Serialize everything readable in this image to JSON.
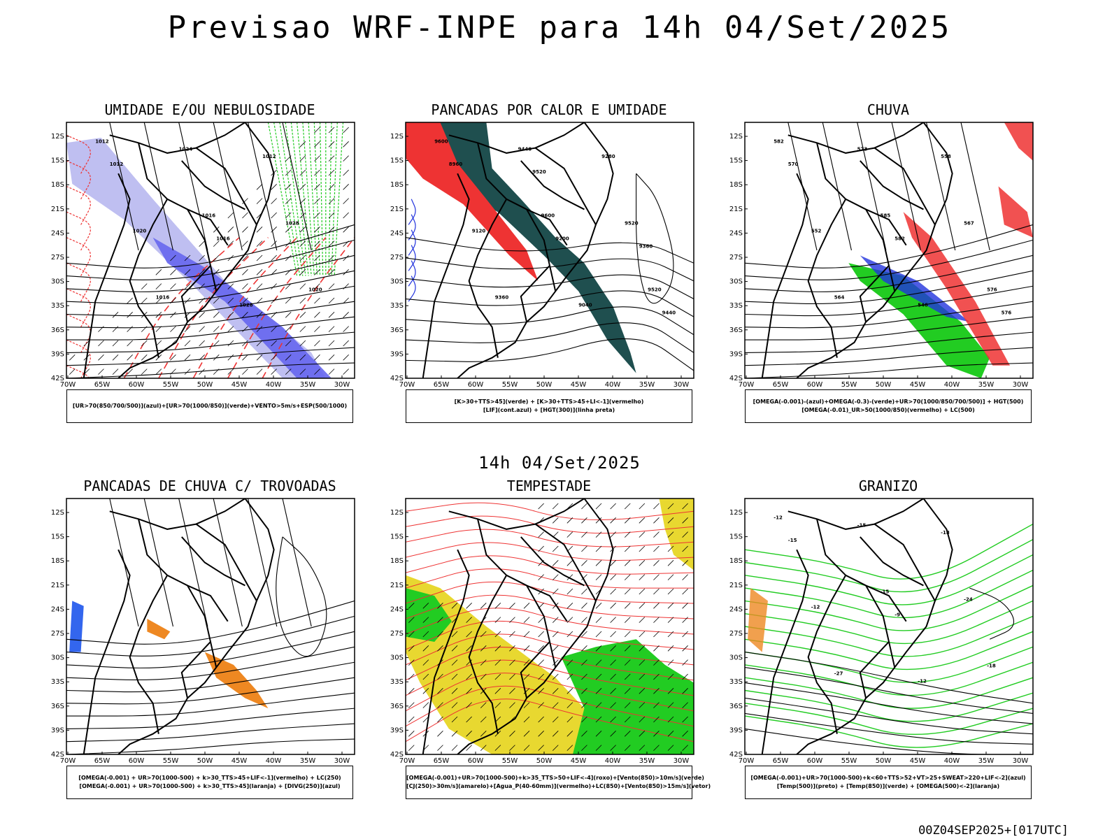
{
  "title": "Previsao WRF-INPE  para 14h 04/Set/2025",
  "subtitle": "14h 04/Set/2025",
  "footer": "00Z04SEP2025+[017UTC]",
  "axis": {
    "lat_labels": [
      "12S",
      "15S",
      "18S",
      "21S",
      "24S",
      "27S",
      "30S",
      "33S",
      "36S",
      "39S",
      "42S"
    ],
    "lon_labels": [
      "70W",
      "65W",
      "60W",
      "55W",
      "50W",
      "45W",
      "40W",
      "35W",
      "30W"
    ]
  },
  "panels": [
    {
      "id": "umidade",
      "title": "UMIDADE E/OU NEBULOSIDADE",
      "legend": [
        "[UR>70(850/700/500)](azul)+[UR>70(1000/850)](verde)+VENTO>5m/s+ESP(500/1000)"
      ],
      "contour_labels": [
        "1012",
        "1016",
        "1020",
        "1024",
        "1028",
        "1016",
        "1012",
        "1020",
        "1028",
        "1012",
        "1016"
      ]
    },
    {
      "id": "pancadas-calor",
      "title": "PANCADAS POR CALOR E UMIDADE",
      "legend": [
        "[K>30+TTS>45](verde) + [K>30+TTS>45+LI<-1](vermelho)",
        "[LIF](cont.azul) + [HGT(300)](linha preta)"
      ],
      "contour_labels": [
        "9600",
        "9600",
        "9520",
        "9440",
        "9520",
        "9360",
        "9280",
        "9120",
        "9040",
        "8960",
        "9200",
        "9440",
        "9520",
        "9360"
      ]
    },
    {
      "id": "chuva",
      "title": "CHUVA",
      "legend": [
        "[OMEGA(-0.001)-(azul)+OMEGA(-0.3)-(verde)+UR>70(1000/850/700/500)] + HGT(500)",
        "[OMEGA(-0.01)_UR>50(1000/850)(vermelho) + LC(500)"
      ],
      "contour_labels": [
        "582",
        "585",
        "576",
        "573",
        "567",
        "564",
        "558",
        "552",
        "546",
        "570",
        "582",
        "576"
      ]
    },
    {
      "id": "pancadas-trovoadas",
      "title": "PANCADAS DE CHUVA C/ TROVOADAS",
      "legend": [
        "[OMEGA(-0.001) + UR>70(1000-500) + k>30_TTS>45+LIF<-1](vermelho) + LC(250)",
        "[OMEGA(-0.001) + UR>70(1000-500) + k>30_TTS>45](laranja) + [DIVG(250)](azul)"
      ]
    },
    {
      "id": "tempestade",
      "title": "TEMPESTADE",
      "legend": [
        "[OMEGA(-0.001)+UR>70(1000-500)+k>35_TTS>50+LIF<-4](roxo)+[Vento(850)>10m/s](verde)",
        "[CJ(250)>30m/s](amarelo)+[Agua_P(40-60mm)](vermelho)+LC(850)+[Vento(850)>15m/s](vetor)"
      ]
    },
    {
      "id": "granizo",
      "title": "GRANIZO",
      "legend": [
        "[OMEGA(-0.001)+UR>70(1000-500)+k<60+TTS>52+VT>25+SWEAT>220+LIF<-2](azul)",
        "[Temp(500)](preto) + [Temp(850)](verde) + [OMEGA(500)<-2](laranja)"
      ],
      "contour_labels": [
        "-12",
        "-15",
        "-18",
        "-15",
        "-24",
        "-27",
        "-18",
        "-12",
        "-12",
        "-15",
        "-9"
      ]
    }
  ],
  "colors": {
    "blue_shade": "#6666ee",
    "lavender_shade": "#b8b8f0",
    "green": "#22cc22",
    "red": "#ee3333",
    "dark_teal": "#1f4f4f",
    "orange": "#ee8822",
    "yellow": "#e8d830"
  }
}
